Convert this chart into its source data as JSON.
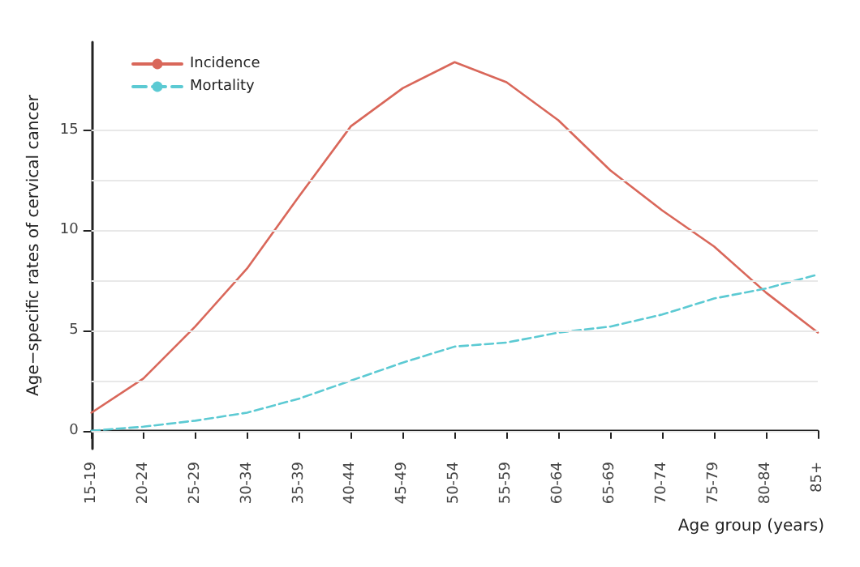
{
  "chart_data": {
    "type": "line",
    "xlabel": "Age group (years)",
    "ylabel": "Age−specific rates of cervical cancer",
    "categories": [
      "15-19",
      "20-24",
      "25-29",
      "30-34",
      "35-39",
      "40-44",
      "45-49",
      "50-54",
      "55-59",
      "60-64",
      "65-69",
      "70-74",
      "75-79",
      "80-84",
      "85+"
    ],
    "series": [
      {
        "name": "Incidence",
        "color": "#d9675a",
        "line_style": "solid",
        "values": [
          0.9,
          2.6,
          5.2,
          8.1,
          11.7,
          15.2,
          17.1,
          18.4,
          17.4,
          15.5,
          13.0,
          11.0,
          9.2,
          6.9,
          4.9
        ]
      },
      {
        "name": "Mortality",
        "color": "#5ccad3",
        "line_style": "dashed",
        "values": [
          0.0,
          0.2,
          0.5,
          0.9,
          1.6,
          2.5,
          3.4,
          4.2,
          4.4,
          4.9,
          5.2,
          5.8,
          6.6,
          7.1,
          7.8
        ]
      }
    ],
    "ylim": [
      -0.9,
      19.4
    ],
    "yticks": [
      0,
      5,
      10,
      15
    ],
    "grid": "y",
    "legend": "top left",
    "marker": "none"
  }
}
